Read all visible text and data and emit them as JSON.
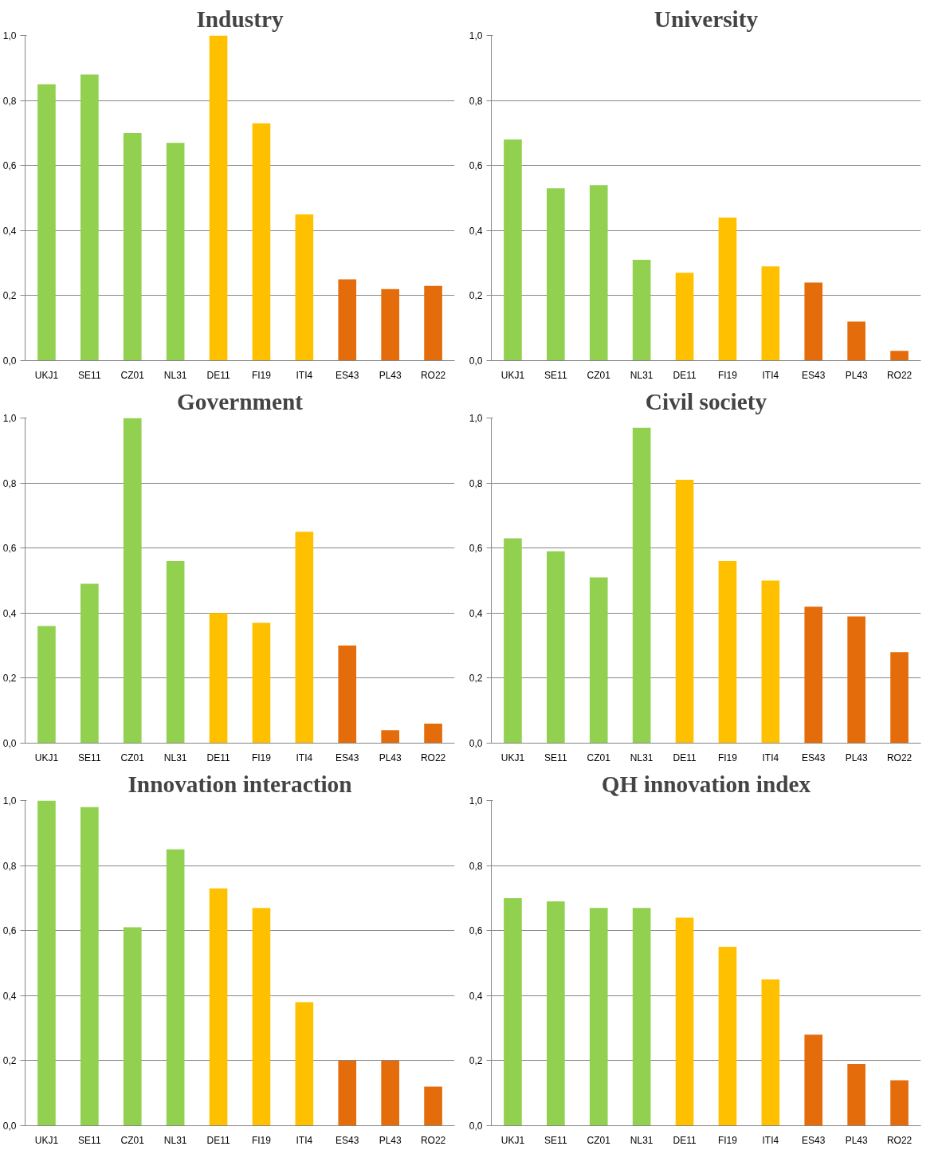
{
  "chart_data": [
    {
      "type": "bar",
      "title": "Industry",
      "categories": [
        "UKJ1",
        "SE11",
        "CZ01",
        "NL31",
        "DE11",
        "FI19",
        "ITI4",
        "ES43",
        "PL43",
        "RO22"
      ],
      "values": [
        0.85,
        0.88,
        0.7,
        0.67,
        1.0,
        0.73,
        0.45,
        0.25,
        0.22,
        0.23
      ],
      "colors": [
        "#92d050",
        "#92d050",
        "#92d050",
        "#92d050",
        "#ffc000",
        "#ffc000",
        "#ffc000",
        "#e46c0a",
        "#e46c0a",
        "#e46c0a"
      ],
      "ylim": [
        0,
        1
      ],
      "yticks": [
        {
          "value": 0,
          "label": "0,0"
        },
        {
          "value": 0.2,
          "label": "0,2"
        },
        {
          "value": 0.4,
          "label": "0,4"
        },
        {
          "value": 0.6,
          "label": "0,6"
        },
        {
          "value": 0.8,
          "label": "0,8"
        },
        {
          "value": 1,
          "label": "1,0"
        }
      ],
      "grid": "y"
    },
    {
      "type": "bar",
      "title": "University",
      "categories": [
        "UKJ1",
        "SE11",
        "CZ01",
        "NL31",
        "DE11",
        "FI19",
        "ITI4",
        "ES43",
        "PL43",
        "RO22"
      ],
      "values": [
        0.68,
        0.53,
        0.54,
        0.31,
        0.27,
        0.44,
        0.29,
        0.24,
        0.12,
        0.03
      ],
      "colors": [
        "#92d050",
        "#92d050",
        "#92d050",
        "#92d050",
        "#ffc000",
        "#ffc000",
        "#ffc000",
        "#e46c0a",
        "#e46c0a",
        "#e46c0a"
      ],
      "ylim": [
        0,
        1
      ],
      "yticks": [
        {
          "value": 0,
          "label": "0,0"
        },
        {
          "value": 0.2,
          "label": "0,2"
        },
        {
          "value": 0.4,
          "label": "0,4"
        },
        {
          "value": 0.6,
          "label": "0,6"
        },
        {
          "value": 0.8,
          "label": "0,8"
        },
        {
          "value": 1,
          "label": "1,0"
        }
      ],
      "grid": "y"
    },
    {
      "type": "bar",
      "title": "Government",
      "categories": [
        "UKJ1",
        "SE11",
        "CZ01",
        "NL31",
        "DE11",
        "FI19",
        "ITI4",
        "ES43",
        "PL43",
        "RO22"
      ],
      "values": [
        0.36,
        0.49,
        1.0,
        0.56,
        0.4,
        0.37,
        0.65,
        0.3,
        0.04,
        0.06
      ],
      "colors": [
        "#92d050",
        "#92d050",
        "#92d050",
        "#92d050",
        "#ffc000",
        "#ffc000",
        "#ffc000",
        "#e46c0a",
        "#e46c0a",
        "#e46c0a"
      ],
      "ylim": [
        0,
        1
      ],
      "yticks": [
        {
          "value": 0,
          "label": "0,0"
        },
        {
          "value": 0.2,
          "label": "0,2"
        },
        {
          "value": 0.4,
          "label": "0,4"
        },
        {
          "value": 0.6,
          "label": "0,6"
        },
        {
          "value": 0.8,
          "label": "0,8"
        },
        {
          "value": 1,
          "label": "1,0"
        }
      ],
      "grid": "y"
    },
    {
      "type": "bar",
      "title": "Civil society",
      "categories": [
        "UKJ1",
        "SE11",
        "CZ01",
        "NL31",
        "DE11",
        "FI19",
        "ITI4",
        "ES43",
        "PL43",
        "RO22"
      ],
      "values": [
        0.63,
        0.59,
        0.51,
        0.97,
        0.81,
        0.56,
        0.5,
        0.42,
        0.39,
        0.28
      ],
      "colors": [
        "#92d050",
        "#92d050",
        "#92d050",
        "#92d050",
        "#ffc000",
        "#ffc000",
        "#ffc000",
        "#e46c0a",
        "#e46c0a",
        "#e46c0a"
      ],
      "ylim": [
        0,
        1
      ],
      "yticks": [
        {
          "value": 0,
          "label": "0,0"
        },
        {
          "value": 0.2,
          "label": "0,2"
        },
        {
          "value": 0.4,
          "label": "0,4"
        },
        {
          "value": 0.6,
          "label": "0,6"
        },
        {
          "value": 0.8,
          "label": "0,8"
        },
        {
          "value": 1,
          "label": "1,0"
        }
      ],
      "grid": "y"
    },
    {
      "type": "bar",
      "title": "Innovation interaction",
      "categories": [
        "UKJ1",
        "SE11",
        "CZ01",
        "NL31",
        "DE11",
        "FI19",
        "ITI4",
        "ES43",
        "PL43",
        "RO22"
      ],
      "values": [
        1.0,
        0.98,
        0.61,
        0.85,
        0.73,
        0.67,
        0.38,
        0.2,
        0.2,
        0.12
      ],
      "colors": [
        "#92d050",
        "#92d050",
        "#92d050",
        "#92d050",
        "#ffc000",
        "#ffc000",
        "#ffc000",
        "#e46c0a",
        "#e46c0a",
        "#e46c0a"
      ],
      "ylim": [
        0,
        1
      ],
      "yticks": [
        {
          "value": 0,
          "label": "0,0"
        },
        {
          "value": 0.2,
          "label": "0,2"
        },
        {
          "value": 0.4,
          "label": "0,4"
        },
        {
          "value": 0.6,
          "label": "0,6"
        },
        {
          "value": 0.8,
          "label": "0,8"
        },
        {
          "value": 1,
          "label": "1,0"
        }
      ],
      "grid": "y"
    },
    {
      "type": "bar",
      "title": "QH innovation index",
      "categories": [
        "UKJ1",
        "SE11",
        "CZ01",
        "NL31",
        "DE11",
        "FI19",
        "ITI4",
        "ES43",
        "PL43",
        "RO22"
      ],
      "values": [
        0.7,
        0.69,
        0.67,
        0.67,
        0.64,
        0.55,
        0.45,
        0.28,
        0.19,
        0.14
      ],
      "colors": [
        "#92d050",
        "#92d050",
        "#92d050",
        "#92d050",
        "#ffc000",
        "#ffc000",
        "#ffc000",
        "#e46c0a",
        "#e46c0a",
        "#e46c0a"
      ],
      "ylim": [
        0,
        1
      ],
      "yticks": [
        {
          "value": 0,
          "label": "0,0"
        },
        {
          "value": 0.2,
          "label": "0,2"
        },
        {
          "value": 0.4,
          "label": "0,4"
        },
        {
          "value": 0.6,
          "label": "0,6"
        },
        {
          "value": 0.8,
          "label": "0,8"
        },
        {
          "value": 1,
          "label": "1,0"
        }
      ],
      "grid": "y"
    }
  ]
}
